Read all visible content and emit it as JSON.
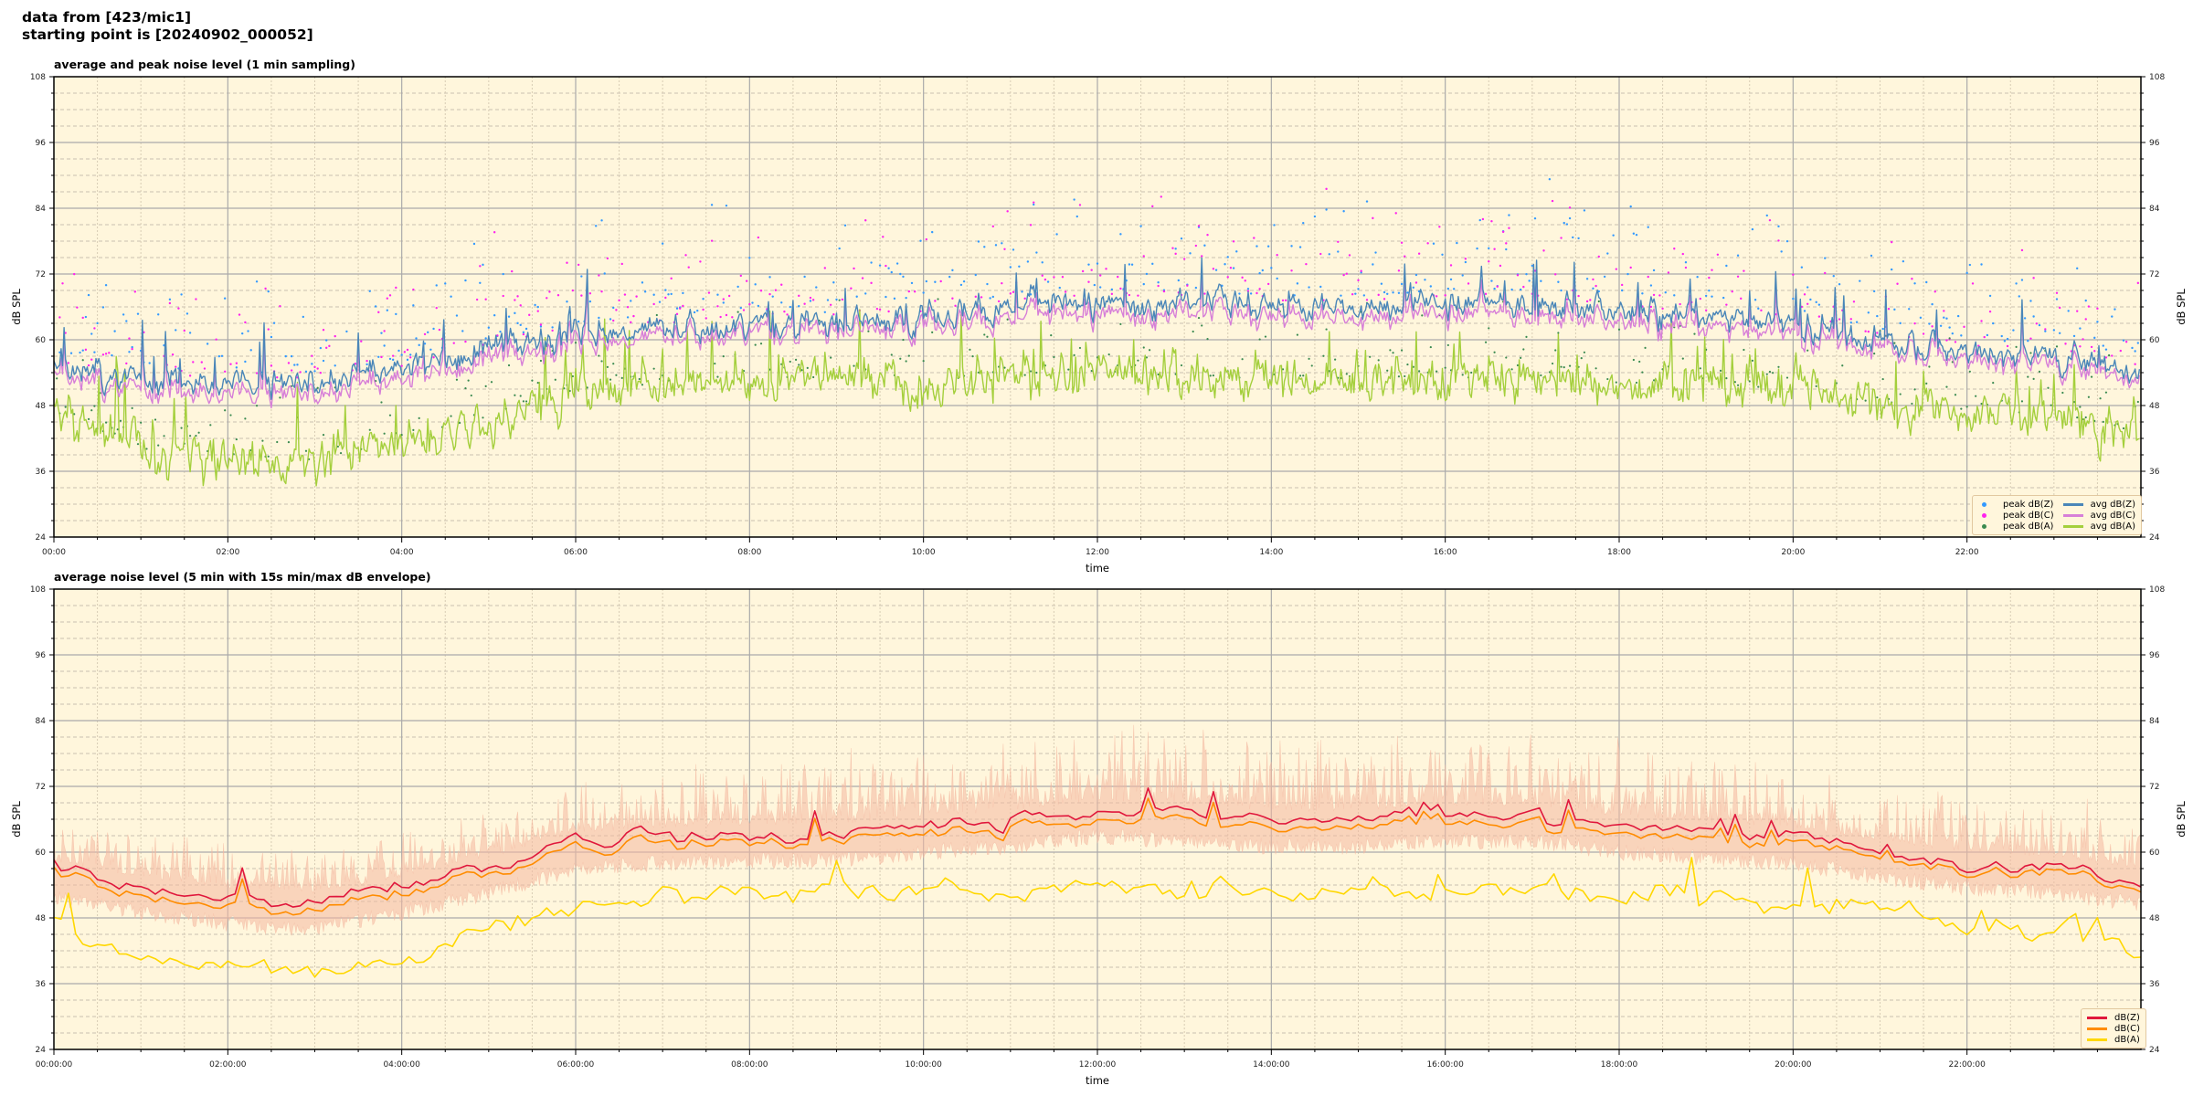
{
  "header": {
    "line1": "data from [423/mic1]",
    "line2": "starting point is [20240902_000052]"
  },
  "chart_data": [
    {
      "type": "line",
      "title": "average and peak noise level (1 min sampling)",
      "xlabel": "time",
      "ylabel": "dB SPL",
      "xlim_hours": [
        0,
        24
      ],
      "ylim": [
        24,
        108
      ],
      "yticks": [
        "24",
        "36",
        "48",
        "60",
        "72",
        "84",
        "96",
        "108"
      ],
      "xticks": [
        "00:00",
        "02:00",
        "04:00",
        "06:00",
        "08:00",
        "10:00",
        "12:00",
        "14:00",
        "16:00",
        "18:00",
        "20:00",
        "22:00"
      ],
      "grid": true,
      "legend_placement": "bottom-right",
      "legend": [
        "peak dB(Z)",
        "peak dB(C)",
        "peak dB(A)",
        "avg dB(Z)",
        "avg dB(C)",
        "avg dB(A)"
      ],
      "colors": {
        "peak_z": "#3399ff",
        "peak_c": "#ff22ee",
        "peak_a": "#3a8a50",
        "avg_z": "#4a86b8",
        "avg_c": "#d77fd8",
        "avg_a": "#a4cf3c"
      },
      "hourly_trend": {
        "hours": [
          0,
          1,
          2,
          3,
          4,
          5,
          6,
          7,
          8,
          9,
          10,
          11,
          12,
          13,
          14,
          15,
          16,
          17,
          18,
          19,
          20,
          21,
          22,
          23,
          24
        ],
        "avg_z": [
          55,
          53,
          52,
          52,
          54,
          58,
          61,
          62,
          63,
          63,
          64,
          66,
          67,
          67,
          66,
          66,
          67,
          67,
          65,
          64,
          63,
          60,
          58,
          57,
          54
        ],
        "avg_c": [
          54,
          51.5,
          50.5,
          50.5,
          52.5,
          56.5,
          59.5,
          61,
          62,
          62,
          63,
          64.5,
          65.5,
          65.5,
          64.5,
          64.5,
          65.5,
          65.5,
          63.5,
          62.5,
          61.5,
          59,
          57,
          56,
          53
        ],
        "avg_a": [
          47,
          40,
          39,
          38,
          41,
          45,
          51,
          52,
          53,
          53,
          53,
          53,
          54,
          53,
          53,
          53,
          53,
          53,
          52,
          52,
          51,
          48,
          47,
          46,
          43
        ]
      }
    },
    {
      "type": "line",
      "title": "average noise level (5 min with 15s min/max dB envelope)",
      "xlabel": "time",
      "ylabel": "dB SPL",
      "xlim_hours": [
        0,
        24
      ],
      "ylim": [
        24,
        108
      ],
      "yticks": [
        "24",
        "36",
        "48",
        "60",
        "72",
        "84",
        "96",
        "108"
      ],
      "xticks": [
        "00:00:00",
        "02:00:00",
        "04:00:00",
        "06:00:00",
        "08:00:00",
        "10:00:00",
        "12:00:00",
        "14:00:00",
        "16:00:00",
        "18:00:00",
        "20:00:00",
        "22:00:00"
      ],
      "grid": true,
      "legend_placement": "bottom-right",
      "legend": [
        "dB(Z)",
        "dB(C)",
        "dB(A)"
      ],
      "colors": {
        "z": "#e0173c",
        "c": "#ff8c00",
        "a": "#ffd700",
        "envelope": "#f4b8a0"
      },
      "hourly_trend": {
        "hours": [
          0,
          1,
          2,
          3,
          4,
          5,
          6,
          7,
          8,
          9,
          10,
          11,
          12,
          13,
          14,
          15,
          16,
          17,
          18,
          19,
          20,
          21,
          22,
          23,
          24
        ],
        "z": [
          56,
          54,
          52,
          51,
          54,
          57,
          62,
          63,
          63,
          63,
          65,
          66,
          68,
          67,
          66,
          66,
          67,
          67,
          65,
          64,
          63,
          60,
          58,
          57,
          55
        ],
        "c": [
          55,
          52.5,
          50.5,
          49.5,
          52.5,
          56,
          60.5,
          61.5,
          62,
          62,
          63.5,
          64.5,
          66.5,
          65.5,
          64.5,
          64.5,
          65.5,
          65.5,
          63.5,
          62.5,
          61.5,
          59,
          57,
          56,
          54
        ],
        "a": [
          47,
          40,
          39,
          38,
          41,
          46,
          51,
          52,
          53,
          53,
          53,
          53,
          54,
          53,
          53,
          53,
          53,
          53,
          52,
          52,
          51,
          49,
          48,
          46,
          43
        ],
        "envelope_max": [
          66,
          62,
          60,
          60,
          62,
          66,
          72,
          74,
          76,
          78,
          80,
          80,
          80,
          82,
          80,
          80,
          80,
          80,
          80,
          78,
          74,
          70,
          68,
          68,
          66
        ]
      }
    }
  ]
}
